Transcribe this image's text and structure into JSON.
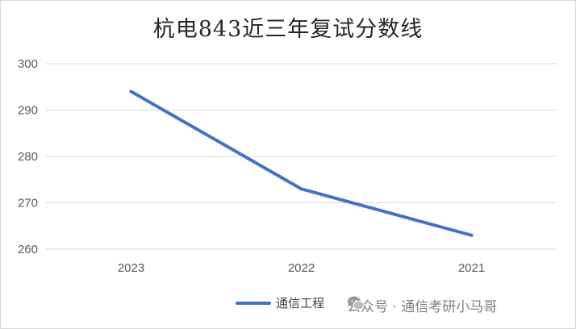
{
  "chart_data": {
    "type": "line",
    "title": "杭电843近三年复试分数线",
    "categories": [
      "2023",
      "2022",
      "2021"
    ],
    "series": [
      {
        "name": "通信工程",
        "values": [
          294,
          273,
          263
        ],
        "color": "#4472c4"
      }
    ],
    "ylim": [
      260,
      300
    ],
    "yticks": [
      "260",
      "270",
      "280",
      "290",
      "300"
    ],
    "xlabel": "",
    "ylabel": "",
    "grid": true,
    "legend": "bottom"
  },
  "watermark": {
    "text": "公众号 · 通信考研小马哥",
    "icon": "wechat-icon"
  }
}
